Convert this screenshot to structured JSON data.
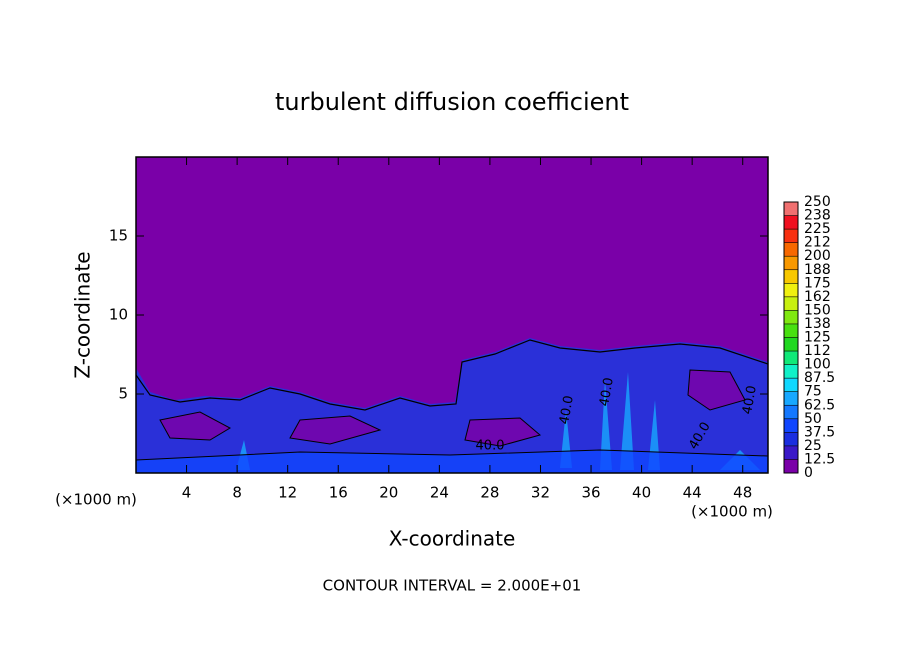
{
  "chart_data": {
    "type": "contour",
    "title": "turbulent diffusion coefficient",
    "xlabel": "X-coordinate",
    "ylabel": "Z-coordinate",
    "x_unit_label": "(×1000 m)",
    "x_unit_label_right": "(×1000 m)",
    "footer": "CONTOUR INTERVAL = 2.000E+01",
    "xlim": [
      0,
      50
    ],
    "ylim": [
      0,
      20
    ],
    "xticks": [
      4,
      8,
      12,
      16,
      20,
      24,
      28,
      32,
      36,
      40,
      44,
      48
    ],
    "yticks": [
      5,
      10,
      15
    ],
    "contour_labels": [
      "40.0",
      "40.0",
      "40.0",
      "40.0",
      "40.0"
    ],
    "colorbar": {
      "levels": [
        0,
        12.5,
        25,
        37.5,
        50,
        62.5,
        75,
        87.5,
        100,
        {
          "value": 112.5,
          "label": "112"
        },
        125,
        {
          "value": 137.5,
          "label": "138"
        },
        150,
        {
          "value": 162.5,
          "label": "162"
        },
        175,
        {
          "value": 187.5,
          "label": "188"
        },
        200,
        {
          "value": 212.5,
          "label": "212"
        },
        225,
        {
          "value": 237.5,
          "label": "238"
        },
        250
      ],
      "colors": [
        "#7a00a8",
        "#3a18c8",
        "#1a2ee0",
        "#1046ff",
        "#1478ff",
        "#18a8ff",
        "#10d8ff",
        "#10f0c8",
        "#10e878",
        "#20d820",
        "#48e010",
        "#80e810",
        "#c8f010",
        "#f0f010",
        "#f8c800",
        "#f89800",
        "#f86800",
        "#f83010",
        "#f01020",
        "#f07070"
      ]
    }
  }
}
